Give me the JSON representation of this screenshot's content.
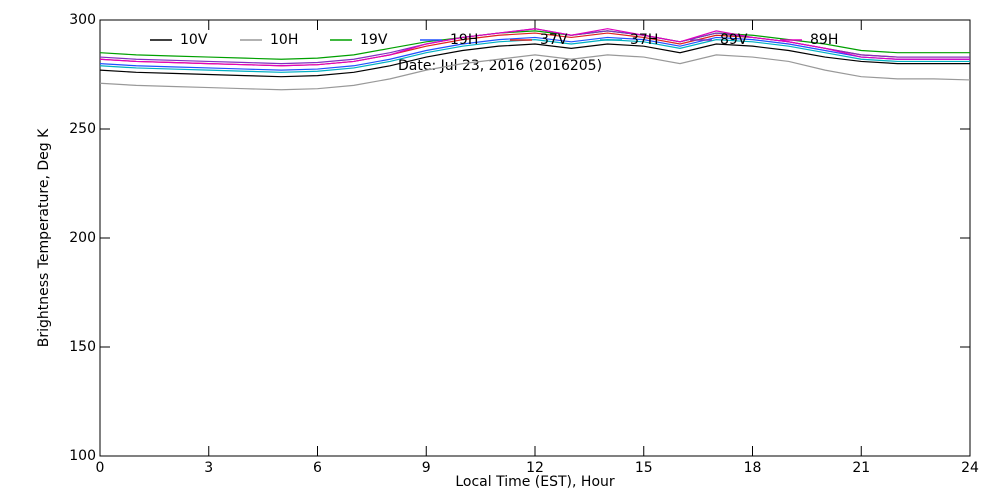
{
  "chart_data": {
    "type": "line",
    "annotation": "Date: Jul 23, 2016 (2016205)",
    "x_label": "Local Time (EST), Hour",
    "y_label": "Brightness Temperature, Deg K",
    "x": [
      0,
      1,
      2,
      3,
      4,
      5,
      6,
      7,
      8,
      9,
      10,
      11,
      12,
      13,
      14,
      15,
      16,
      17,
      18,
      19,
      20,
      21,
      22,
      23,
      24
    ],
    "xlim": [
      0,
      24
    ],
    "xticks": [
      0,
      3,
      6,
      9,
      12,
      15,
      18,
      21,
      24
    ],
    "ylim": [
      100,
      300
    ],
    "yticks": [
      100,
      150,
      200,
      250,
      300
    ],
    "series": [
      {
        "name": "10V",
        "color": "#000000",
        "values": [
          277,
          276,
          275.5,
          275,
          274.5,
          274,
          274.5,
          276,
          279,
          283,
          286,
          288,
          289,
          287,
          289,
          288,
          285,
          289,
          288,
          286,
          283,
          281,
          280,
          280,
          280
        ]
      },
      {
        "name": "10H",
        "color": "#999999",
        "values": [
          271,
          270,
          269.5,
          269,
          268.5,
          268,
          268.5,
          270,
          273,
          277,
          280,
          282,
          284,
          282,
          284,
          283,
          280,
          284,
          283,
          281,
          277,
          274,
          273,
          273,
          272.5
        ]
      },
      {
        "name": "19V",
        "color": "#00a000",
        "values": [
          285,
          284,
          283.5,
          283,
          282.5,
          282,
          282.5,
          284,
          287,
          290,
          292,
          294,
          295,
          293,
          295,
          293,
          290,
          294,
          293,
          291,
          289,
          286,
          285,
          285,
          285
        ]
      },
      {
        "name": "19H",
        "color": "#2050ff",
        "values": [
          280,
          279,
          278.5,
          278,
          277.5,
          277,
          277.5,
          279,
          282,
          286,
          289,
          291,
          292,
          290,
          292,
          291,
          288,
          292,
          291,
          289,
          286,
          283,
          282,
          282,
          282
        ]
      },
      {
        "name": "37V",
        "color": "#e02020",
        "values": [
          282,
          281,
          280.5,
          280,
          279.5,
          279,
          279.5,
          281,
          284,
          288,
          291,
          293,
          294,
          292,
          294,
          292,
          289,
          293,
          292,
          290,
          287,
          284,
          283,
          283,
          283
        ]
      },
      {
        "name": "37H",
        "color": "#00b0c0",
        "values": [
          279,
          278,
          277.5,
          277,
          276.5,
          276,
          276.5,
          278,
          281,
          285,
          288,
          290,
          291,
          289,
          291,
          290,
          287,
          291,
          290,
          288,
          285,
          282,
          281,
          281,
          281
        ]
      },
      {
        "name": "89V",
        "color": "#8030c0",
        "values": [
          283,
          282,
          281.5,
          281,
          280.5,
          280,
          280.5,
          282,
          285,
          289,
          292,
          294,
          296,
          293,
          295,
          293,
          290,
          294,
          292,
          290,
          287,
          284,
          283,
          283,
          283
        ]
      },
      {
        "name": "89H",
        "color": "#e000c0",
        "values": [
          282,
          281,
          280.5,
          280,
          279.5,
          279,
          279.5,
          281,
          284,
          289,
          292,
          294,
          296,
          293,
          296,
          293,
          290,
          295,
          292,
          290,
          287,
          283,
          282,
          282,
          282
        ]
      }
    ]
  }
}
